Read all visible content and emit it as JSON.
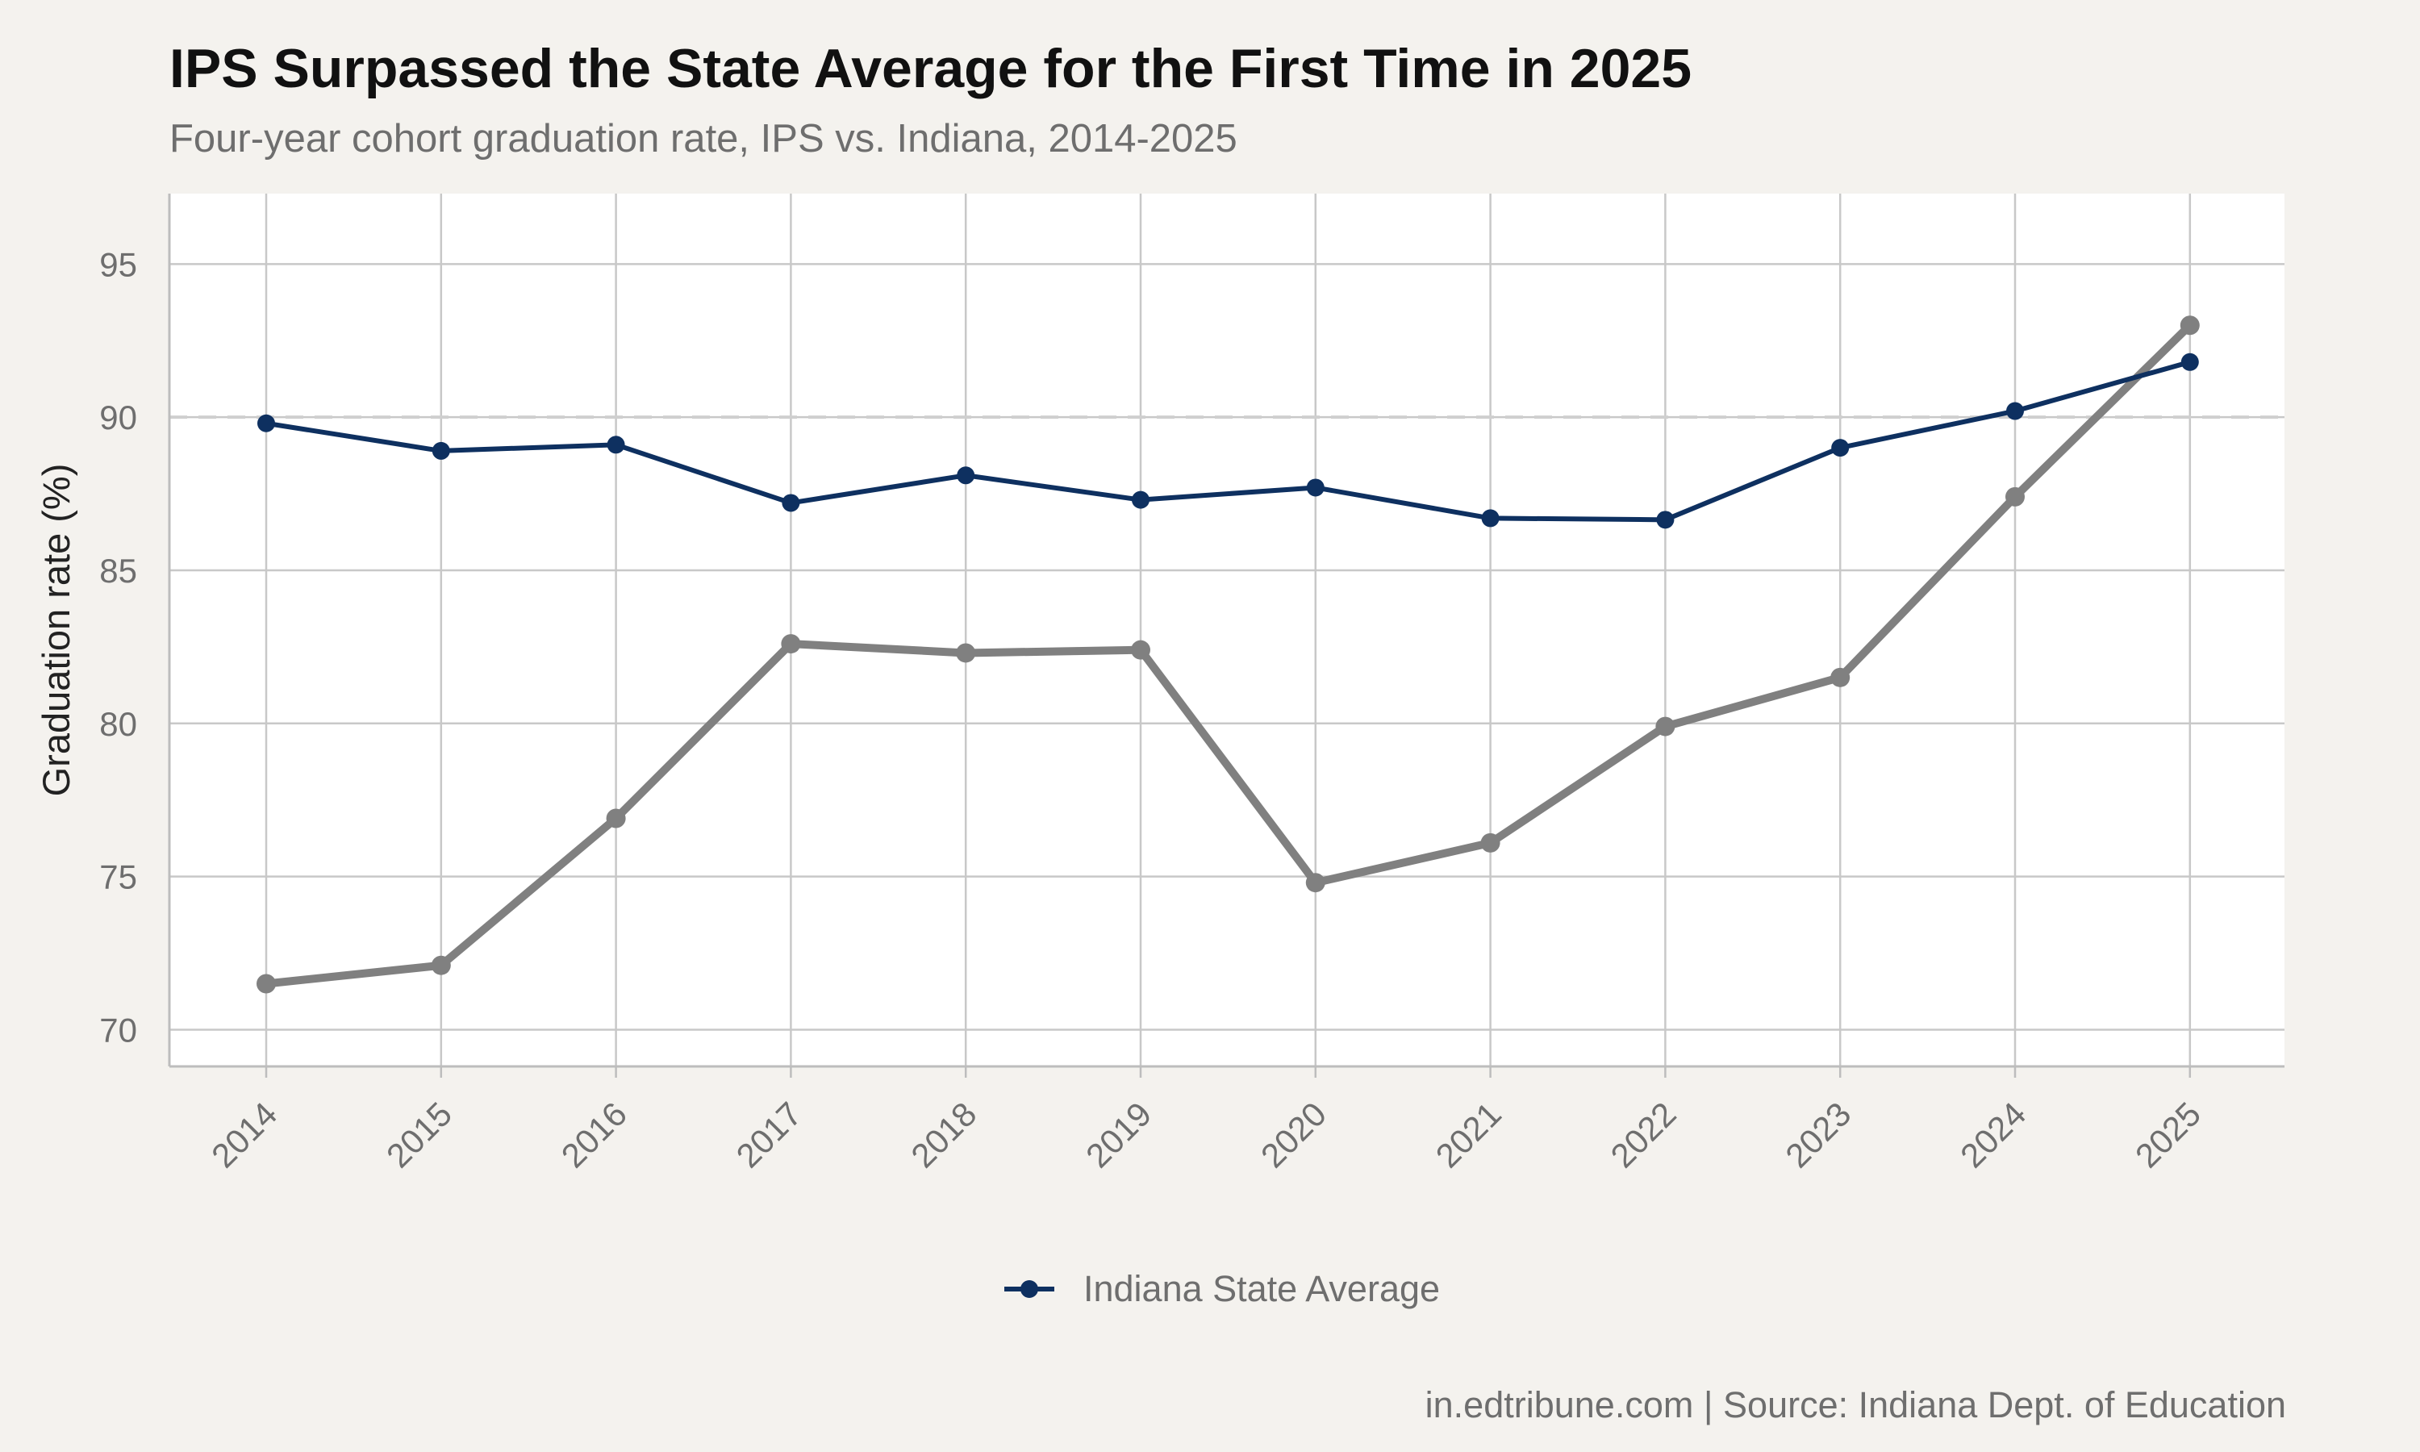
{
  "chart_data": {
    "type": "line",
    "title": "IPS Surpassed the State Average for the First Time in 2025",
    "subtitle": "Four-year cohort graduation rate, IPS vs. Indiana, 2014-2025",
    "ylabel": "Graduation rate (%)",
    "xlabel": "",
    "x": [
      "2014",
      "2015",
      "2016",
      "2017",
      "2018",
      "2019",
      "2020",
      "2021",
      "2022",
      "2023",
      "2024",
      "2025"
    ],
    "yticks": [
      70,
      75,
      80,
      85,
      90,
      95
    ],
    "ylim": [
      68.8,
      97.3
    ],
    "reference_line": 90,
    "grid": true,
    "legend_position": "bottom",
    "series": [
      {
        "name": "Indiana State Average",
        "color": "#0e3060",
        "values": [
          89.8,
          88.9,
          89.1,
          87.2,
          88.1,
          87.3,
          87.7,
          86.7,
          86.65,
          89.0,
          90.2,
          91.8
        ]
      },
      {
        "color": "#808080",
        "values": [
          71.5,
          72.1,
          76.9,
          82.6,
          82.3,
          82.4,
          74.8,
          76.1,
          79.9,
          81.5,
          87.4,
          93.0
        ]
      }
    ]
  },
  "caption": "in.edtribune.com | Source: Indiana Dept. of Education",
  "colors": {
    "background": "#f4f2ee",
    "panel": "#ffffff",
    "gridline": "#c8c8c8",
    "reference_line": "#cfcfcf"
  }
}
